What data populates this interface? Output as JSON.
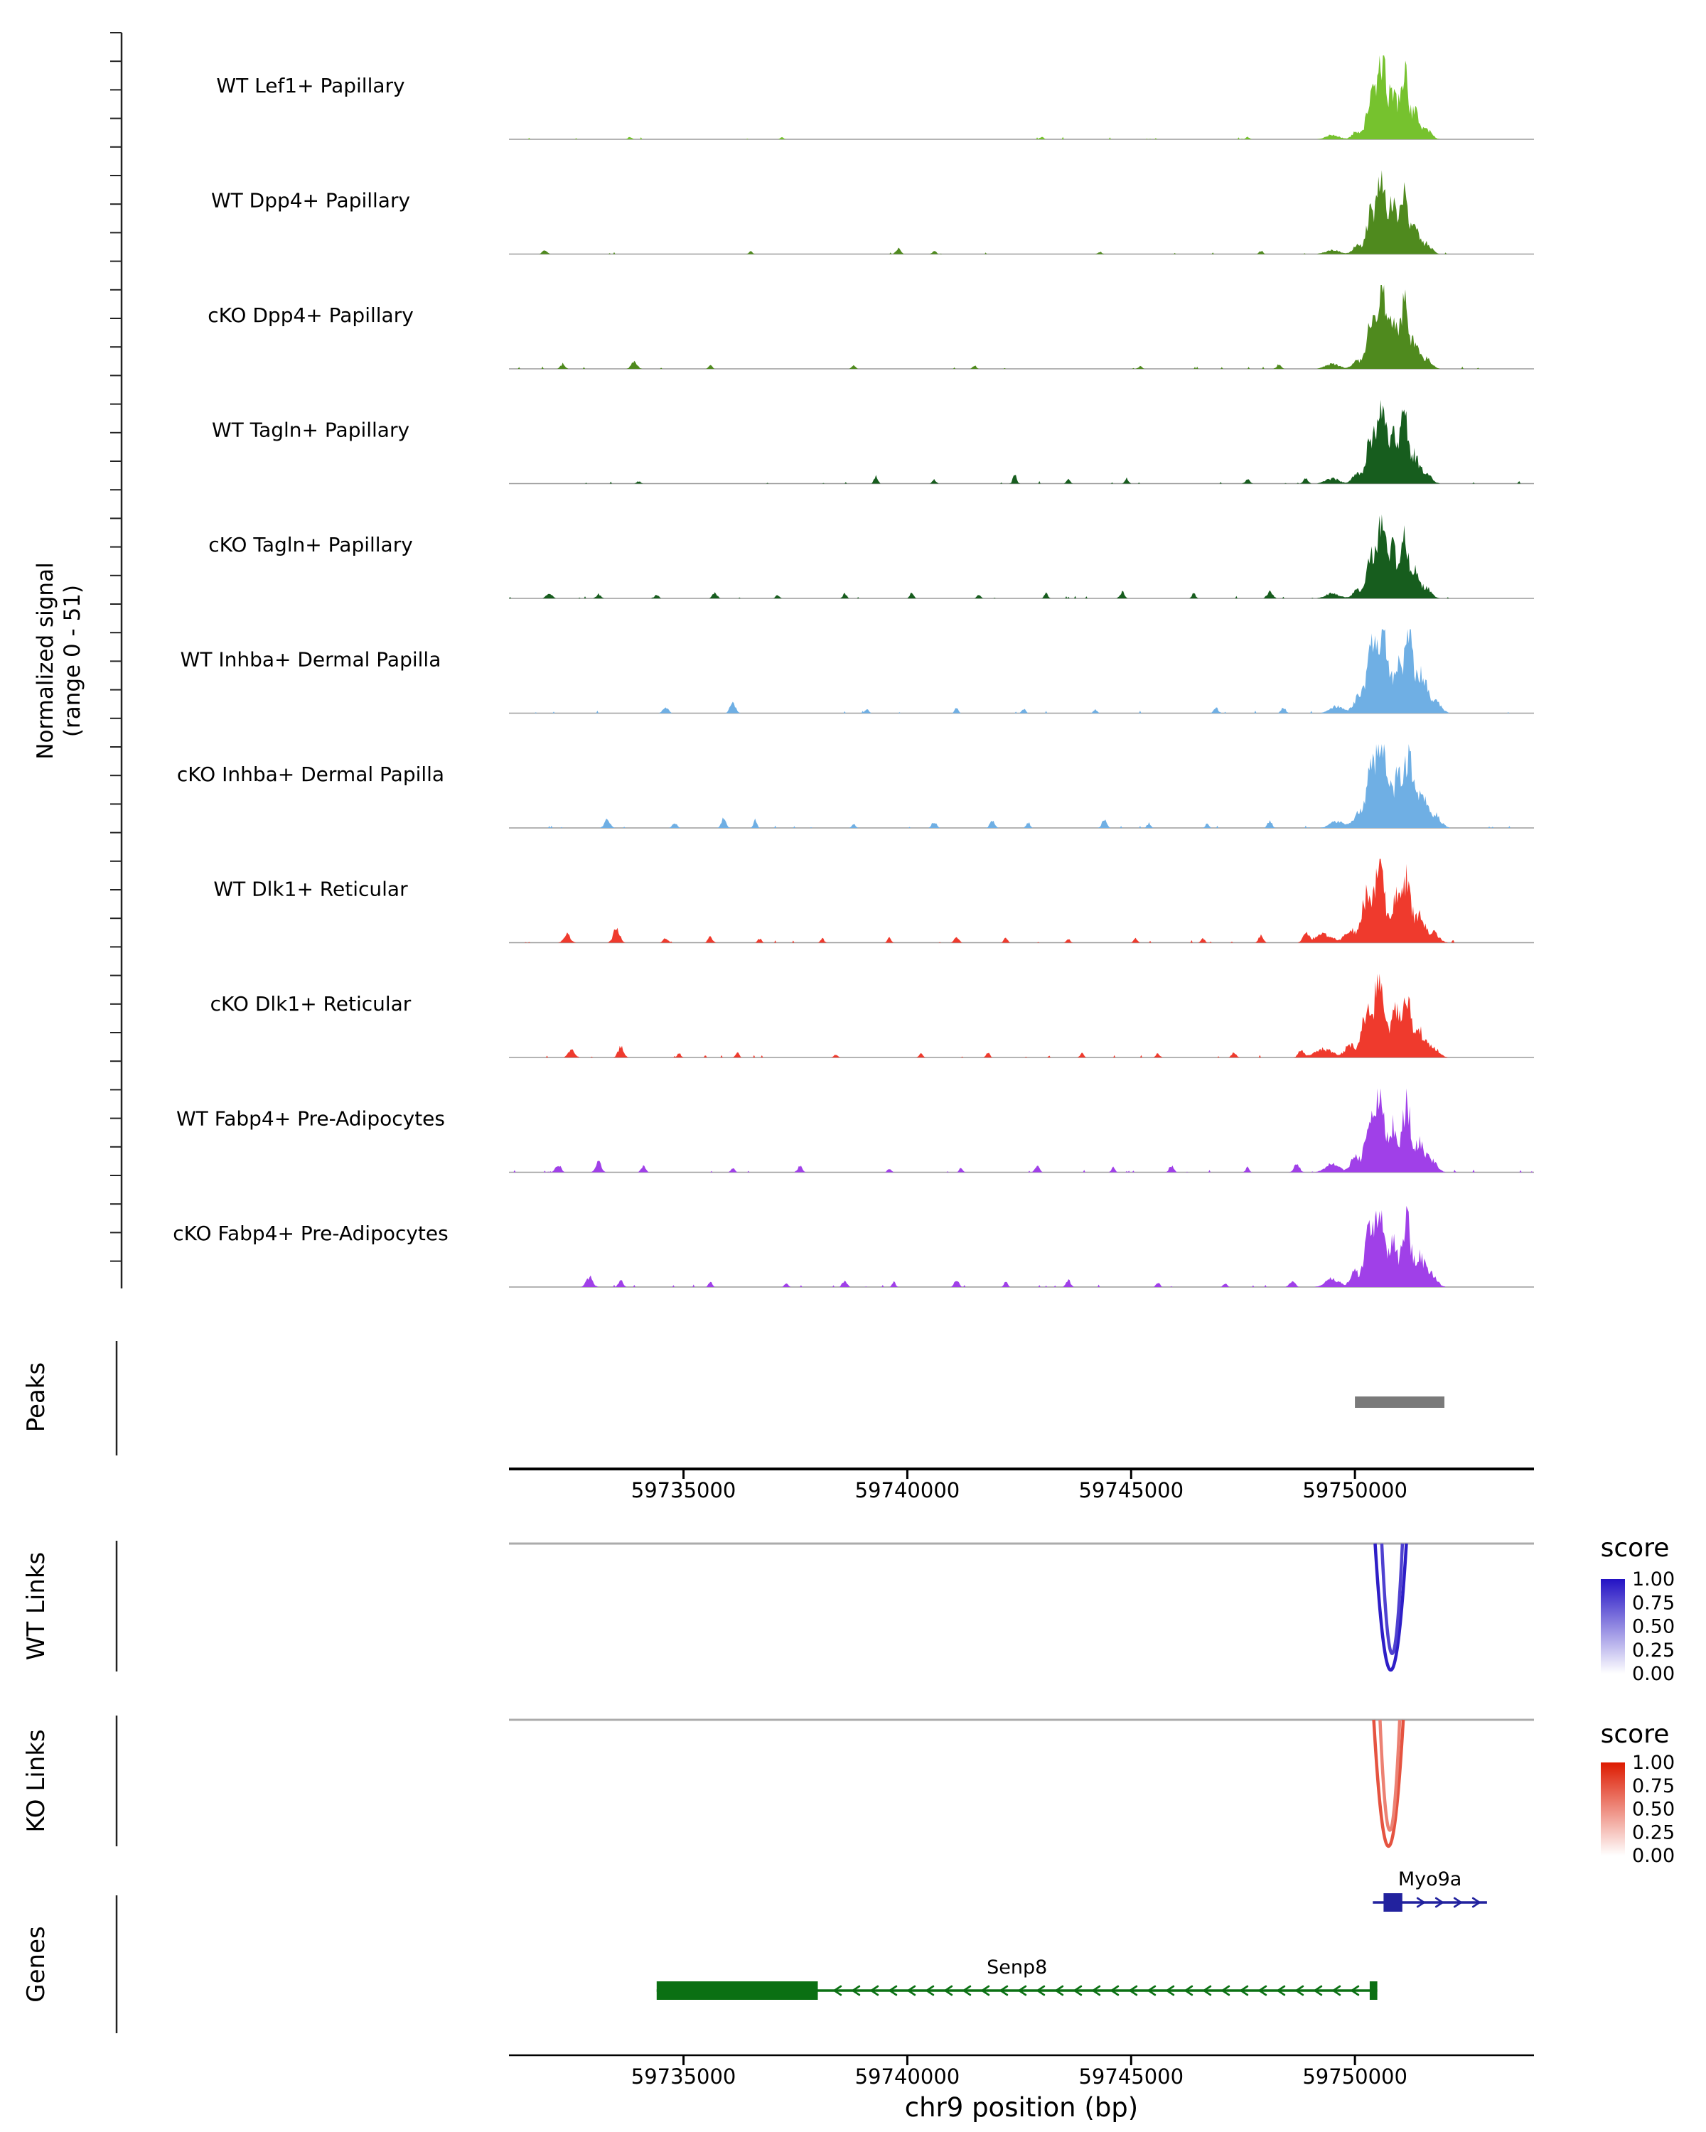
{
  "figure": {
    "y_axis_label_line1": "Normalized signal",
    "y_axis_label_line2": "(range 0 - 51)",
    "x_axis_title": "chr9 position (bp)",
    "section_labels": {
      "peaks": "Peaks",
      "wt_links": "WT Links",
      "ko_links": "KO Links",
      "genes": "Genes"
    }
  },
  "chart_data": {
    "type": "area",
    "subtype": "genome-coverage-tracks",
    "region": {
      "chrom": "chr9",
      "start": 59731100,
      "end": 59754000
    },
    "x_axis": {
      "title": "chr9 position (bp)",
      "ticks": [
        59735000,
        59740000,
        59745000,
        59750000
      ]
    },
    "y_axis": {
      "label": "Normalized signal",
      "range": [
        0,
        51
      ]
    },
    "tracks": [
      {
        "label": "WT Lef1+ Papillary",
        "color": "#76C22E",
        "peaks": [
          [
            59749500,
            0.05,
            150
          ],
          [
            59750050,
            0.1,
            100
          ],
          [
            59750350,
            0.5,
            90
          ],
          [
            59750600,
            1.0,
            95
          ],
          [
            59750850,
            0.55,
            80
          ],
          [
            59751100,
            0.8,
            90
          ],
          [
            59751350,
            0.3,
            90
          ],
          [
            59751600,
            0.12,
            110
          ],
          [
            59733800,
            0.03,
            40
          ],
          [
            59737200,
            0.025,
            40
          ],
          [
            59743000,
            0.03,
            40
          ],
          [
            59747600,
            0.03,
            40
          ]
        ]
      },
      {
        "label": "WT Dpp4+ Papillary",
        "color": "#4F8A1E",
        "peaks": [
          [
            59749500,
            0.05,
            150
          ],
          [
            59750050,
            0.1,
            100
          ],
          [
            59750350,
            0.5,
            90
          ],
          [
            59750600,
            1.0,
            95
          ],
          [
            59750850,
            0.55,
            80
          ],
          [
            59751100,
            0.8,
            90
          ],
          [
            59751350,
            0.3,
            90
          ],
          [
            59751600,
            0.12,
            110
          ],
          [
            59731900,
            0.05,
            50
          ],
          [
            59736500,
            0.03,
            40
          ],
          [
            59739800,
            0.07,
            50
          ],
          [
            59740600,
            0.04,
            40
          ],
          [
            59744300,
            0.03,
            40
          ],
          [
            59747900,
            0.04,
            40
          ]
        ]
      },
      {
        "label": "cKO Dpp4+ Papillary",
        "color": "#4F8A1E",
        "peaks": [
          [
            59749500,
            0.06,
            150
          ],
          [
            59750050,
            0.1,
            100
          ],
          [
            59750350,
            0.5,
            90
          ],
          [
            59750600,
            1.0,
            95
          ],
          [
            59750850,
            0.55,
            80
          ],
          [
            59751100,
            0.8,
            90
          ],
          [
            59751350,
            0.3,
            90
          ],
          [
            59751600,
            0.12,
            110
          ],
          [
            59732300,
            0.06,
            50
          ],
          [
            59733900,
            0.1,
            60
          ],
          [
            59735600,
            0.04,
            40
          ],
          [
            59738800,
            0.04,
            40
          ],
          [
            59741500,
            0.04,
            40
          ],
          [
            59745200,
            0.03,
            40
          ],
          [
            59748300,
            0.05,
            50
          ]
        ]
      },
      {
        "label": "WT Tagln+ Papillary",
        "color": "#175D1E",
        "peaks": [
          [
            59749500,
            0.06,
            150
          ],
          [
            59750050,
            0.12,
            100
          ],
          [
            59750350,
            0.55,
            90
          ],
          [
            59750600,
            1.0,
            95
          ],
          [
            59750850,
            0.6,
            80
          ],
          [
            59751100,
            0.82,
            90
          ],
          [
            59751350,
            0.32,
            90
          ],
          [
            59751600,
            0.12,
            110
          ],
          [
            59734000,
            0.03,
            40
          ],
          [
            59739300,
            0.09,
            40
          ],
          [
            59740600,
            0.05,
            40
          ],
          [
            59742400,
            0.11,
            40
          ],
          [
            59743600,
            0.05,
            40
          ],
          [
            59744900,
            0.06,
            40
          ],
          [
            59747600,
            0.05,
            50
          ],
          [
            59748900,
            0.06,
            50
          ]
        ]
      },
      {
        "label": "cKO Tagln+ Papillary",
        "color": "#175D1E",
        "peaks": [
          [
            59749500,
            0.06,
            150
          ],
          [
            59750050,
            0.1,
            100
          ],
          [
            59750350,
            0.5,
            90
          ],
          [
            59750600,
            0.95,
            95
          ],
          [
            59750850,
            0.55,
            80
          ],
          [
            59751100,
            0.78,
            90
          ],
          [
            59751350,
            0.3,
            90
          ],
          [
            59751600,
            0.12,
            110
          ],
          [
            59732000,
            0.07,
            60
          ],
          [
            59733100,
            0.05,
            50
          ],
          [
            59734400,
            0.05,
            40
          ],
          [
            59735700,
            0.07,
            50
          ],
          [
            59737100,
            0.04,
            40
          ],
          [
            59738600,
            0.06,
            40
          ],
          [
            59740100,
            0.07,
            40
          ],
          [
            59741600,
            0.05,
            40
          ],
          [
            59743100,
            0.06,
            40
          ],
          [
            59744800,
            0.08,
            50
          ],
          [
            59746400,
            0.06,
            40
          ],
          [
            59748100,
            0.09,
            60
          ]
        ]
      },
      {
        "label": "WT Inhba+ Dermal Papilla",
        "color": "#6FAFE4",
        "peaks": [
          [
            59749600,
            0.08,
            150
          ],
          [
            59750100,
            0.2,
            120
          ],
          [
            59750400,
            0.85,
            110
          ],
          [
            59750650,
            1.0,
            100
          ],
          [
            59750950,
            0.6,
            90
          ],
          [
            59751200,
            0.9,
            100
          ],
          [
            59751500,
            0.45,
            110
          ],
          [
            59751800,
            0.15,
            120
          ],
          [
            59734600,
            0.07,
            60
          ],
          [
            59736100,
            0.12,
            60
          ],
          [
            59739100,
            0.05,
            40
          ],
          [
            59741100,
            0.06,
            40
          ],
          [
            59742600,
            0.05,
            40
          ],
          [
            59744200,
            0.04,
            40
          ],
          [
            59746900,
            0.06,
            50
          ],
          [
            59748400,
            0.07,
            50
          ]
        ]
      },
      {
        "label": "cKO Inhba+ Dermal Papilla",
        "color": "#6FAFE4",
        "peaks": [
          [
            59749600,
            0.08,
            150
          ],
          [
            59750100,
            0.2,
            120
          ],
          [
            59750400,
            0.8,
            110
          ],
          [
            59750650,
            0.95,
            100
          ],
          [
            59750950,
            0.6,
            90
          ],
          [
            59751200,
            0.88,
            100
          ],
          [
            59751500,
            0.45,
            110
          ],
          [
            59751800,
            0.15,
            120
          ],
          [
            59733300,
            0.1,
            60
          ],
          [
            59734800,
            0.07,
            50
          ],
          [
            59735900,
            0.12,
            50
          ],
          [
            59736600,
            0.09,
            40
          ],
          [
            59738800,
            0.05,
            40
          ],
          [
            59740600,
            0.08,
            50
          ],
          [
            59741900,
            0.1,
            50
          ],
          [
            59742700,
            0.07,
            40
          ],
          [
            59744400,
            0.1,
            50
          ],
          [
            59745400,
            0.06,
            40
          ],
          [
            59746700,
            0.05,
            40
          ],
          [
            59748100,
            0.08,
            50
          ]
        ]
      },
      {
        "label": "WT Dlk1+ Reticular",
        "color": "#EF3A2D",
        "peaks": [
          [
            59749300,
            0.1,
            200
          ],
          [
            59749900,
            0.15,
            120
          ],
          [
            59750250,
            0.55,
            100
          ],
          [
            59750550,
            1.0,
            110
          ],
          [
            59750900,
            0.5,
            90
          ],
          [
            59751150,
            0.75,
            100
          ],
          [
            59751450,
            0.3,
            110
          ],
          [
            59751750,
            0.12,
            120
          ],
          [
            59732400,
            0.1,
            70
          ],
          [
            59733500,
            0.17,
            70
          ],
          [
            59734600,
            0.06,
            50
          ],
          [
            59735600,
            0.07,
            50
          ],
          [
            59736700,
            0.05,
            40
          ],
          [
            59738100,
            0.05,
            40
          ],
          [
            59739600,
            0.06,
            40
          ],
          [
            59741100,
            0.07,
            50
          ],
          [
            59742200,
            0.06,
            40
          ],
          [
            59743600,
            0.05,
            40
          ],
          [
            59745100,
            0.05,
            40
          ],
          [
            59746600,
            0.06,
            40
          ],
          [
            59747900,
            0.09,
            50
          ],
          [
            59748900,
            0.11,
            60
          ]
        ]
      },
      {
        "label": "cKO Dlk1+ Reticular",
        "color": "#EF3A2D",
        "peaks": [
          [
            59749300,
            0.1,
            200
          ],
          [
            59749900,
            0.15,
            120
          ],
          [
            59750250,
            0.55,
            100
          ],
          [
            59750550,
            1.0,
            110
          ],
          [
            59750900,
            0.5,
            90
          ],
          [
            59751150,
            0.72,
            100
          ],
          [
            59751450,
            0.3,
            110
          ],
          [
            59751750,
            0.12,
            120
          ],
          [
            59732500,
            0.09,
            70
          ],
          [
            59733600,
            0.13,
            60
          ],
          [
            59734900,
            0.05,
            40
          ],
          [
            59736200,
            0.06,
            40
          ],
          [
            59738400,
            0.04,
            40
          ],
          [
            59740300,
            0.05,
            40
          ],
          [
            59741800,
            0.06,
            40
          ],
          [
            59743900,
            0.05,
            40
          ],
          [
            59745600,
            0.05,
            40
          ],
          [
            59747300,
            0.06,
            50
          ],
          [
            59748800,
            0.09,
            60
          ]
        ]
      },
      {
        "label": "WT Fabp4+ Pre-Adipocytes",
        "color": "#A040E8",
        "peaks": [
          [
            59749500,
            0.1,
            150
          ],
          [
            59750000,
            0.18,
            100
          ],
          [
            59750300,
            0.6,
            90
          ],
          [
            59750550,
            1.0,
            100
          ],
          [
            59750850,
            0.55,
            85
          ],
          [
            59751150,
            0.85,
            95
          ],
          [
            59751450,
            0.35,
            100
          ],
          [
            59751700,
            0.15,
            120
          ],
          [
            59732200,
            0.09,
            60
          ],
          [
            59733100,
            0.12,
            60
          ],
          [
            59734100,
            0.07,
            50
          ],
          [
            59736100,
            0.06,
            40
          ],
          [
            59737600,
            0.08,
            50
          ],
          [
            59739600,
            0.05,
            40
          ],
          [
            59741200,
            0.05,
            40
          ],
          [
            59742900,
            0.08,
            50
          ],
          [
            59744600,
            0.06,
            40
          ],
          [
            59745900,
            0.08,
            50
          ],
          [
            59747600,
            0.06,
            40
          ],
          [
            59748700,
            0.1,
            60
          ]
        ]
      },
      {
        "label": "cKO Fabp4+ Pre-Adipocytes",
        "color": "#A040E8",
        "peaks": [
          [
            59749500,
            0.1,
            150
          ],
          [
            59750000,
            0.18,
            100
          ],
          [
            59750300,
            0.6,
            90
          ],
          [
            59750550,
            0.96,
            100
          ],
          [
            59750850,
            0.55,
            85
          ],
          [
            59751150,
            0.82,
            95
          ],
          [
            59751450,
            0.35,
            100
          ],
          [
            59751700,
            0.15,
            120
          ],
          [
            59732900,
            0.12,
            70
          ],
          [
            59733600,
            0.09,
            50
          ],
          [
            59735600,
            0.06,
            40
          ],
          [
            59737300,
            0.05,
            40
          ],
          [
            59738600,
            0.08,
            50
          ],
          [
            59739700,
            0.06,
            40
          ],
          [
            59741100,
            0.08,
            50
          ],
          [
            59742200,
            0.06,
            40
          ],
          [
            59743600,
            0.08,
            50
          ],
          [
            59745600,
            0.06,
            40
          ],
          [
            59747100,
            0.05,
            40
          ],
          [
            59748600,
            0.08,
            60
          ]
        ]
      }
    ],
    "peaks_track": {
      "label": "Peaks",
      "color": "#7A7A7A",
      "regions": [
        [
          59750000,
          59752000
        ]
      ]
    },
    "wt_links": {
      "label": "WT Links",
      "legend_title": "score",
      "legend_ticks": [
        "1.00",
        "0.75",
        "0.50",
        "0.25",
        "0.00"
      ],
      "max_color": "#2312C4",
      "links": [
        {
          "start": 59750450,
          "end": 59751150,
          "score": 0.95
        },
        {
          "start": 59750600,
          "end": 59751060,
          "score": 0.8
        }
      ]
    },
    "ko_links": {
      "label": "KO Links",
      "legend_title": "score",
      "legend_ticks": [
        "1.00",
        "0.75",
        "0.50",
        "0.25",
        "0.00"
      ],
      "max_color": "#DD1A00",
      "links": [
        {
          "start": 59750420,
          "end": 59751080,
          "score": 0.75
        },
        {
          "start": 59750560,
          "end": 59751000,
          "score": 0.55
        }
      ]
    },
    "genes": [
      {
        "name": "Myo9a",
        "color": "#22229E",
        "strand": "+",
        "start": 59750400,
        "end": 59752950,
        "row": 0,
        "exons": [
          [
            59750640,
            59751060
          ]
        ]
      },
      {
        "name": "Senp8",
        "color": "#0B7013",
        "strand": "-",
        "start": 59734400,
        "end": 59750500,
        "row": 1,
        "exons": [
          [
            59734400,
            59738000
          ],
          [
            59750330,
            59750500
          ]
        ]
      }
    ]
  }
}
